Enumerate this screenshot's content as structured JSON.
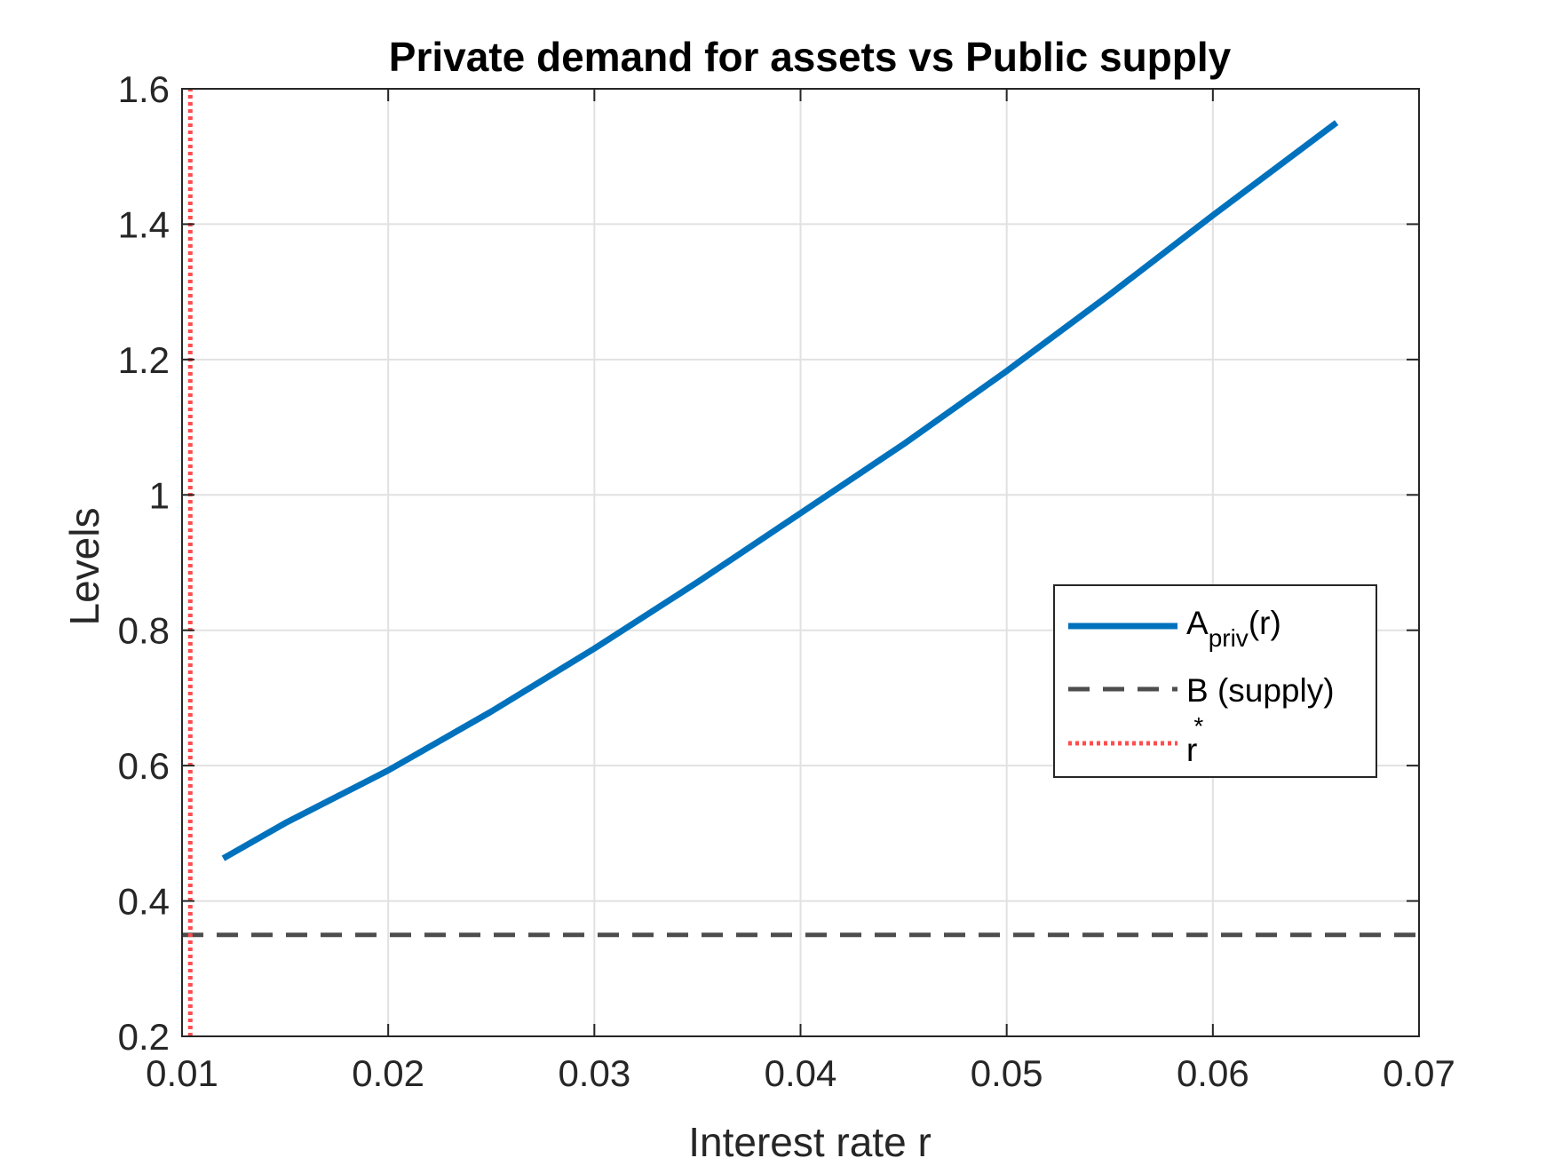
{
  "chart_data": {
    "type": "line",
    "title": "Private demand for assets vs Public supply",
    "xlabel": "Interest rate r",
    "ylabel": "Levels",
    "xlim": [
      0.01,
      0.07
    ],
    "ylim": [
      0.2,
      1.6
    ],
    "xticks": [
      0.01,
      0.02,
      0.03,
      0.04,
      0.05,
      0.06,
      0.07
    ],
    "xtick_labels": [
      "0.01",
      "0.02",
      "0.03",
      "0.04",
      "0.05",
      "0.06",
      "0.07"
    ],
    "yticks": [
      0.2,
      0.4,
      0.6,
      0.8,
      1.0,
      1.2,
      1.4,
      1.6
    ],
    "ytick_labels": [
      "0.2",
      "0.4",
      "0.6",
      "0.8",
      "1",
      "1.2",
      "1.4",
      "1.6"
    ],
    "grid": true,
    "legend_position": "right",
    "series": [
      {
        "name": "A_priv(r)",
        "legend_main": "A",
        "legend_sub": "priv",
        "legend_tail": "(r)",
        "style": "solid",
        "color": "#0072BD",
        "x": [
          0.012,
          0.015,
          0.02,
          0.025,
          0.03,
          0.035,
          0.04,
          0.045,
          0.05,
          0.055,
          0.06,
          0.066
        ],
        "y": [
          0.463,
          0.515,
          0.593,
          0.68,
          0.773,
          0.871,
          0.973,
          1.075,
          1.183,
          1.296,
          1.413,
          1.55
        ]
      },
      {
        "name": "B (supply)",
        "legend_main": "B (supply)",
        "style": "dashed",
        "color": "#4D4D4D",
        "x": [
          0.01,
          0.07
        ],
        "y": [
          0.35,
          0.35
        ]
      },
      {
        "name": "r*",
        "legend_main": "r",
        "legend_sup": "*",
        "style": "dotted",
        "color": "#FF4D4D",
        "x": [
          0.0104,
          0.0104
        ],
        "y": [
          0.2,
          1.6
        ]
      }
    ]
  }
}
